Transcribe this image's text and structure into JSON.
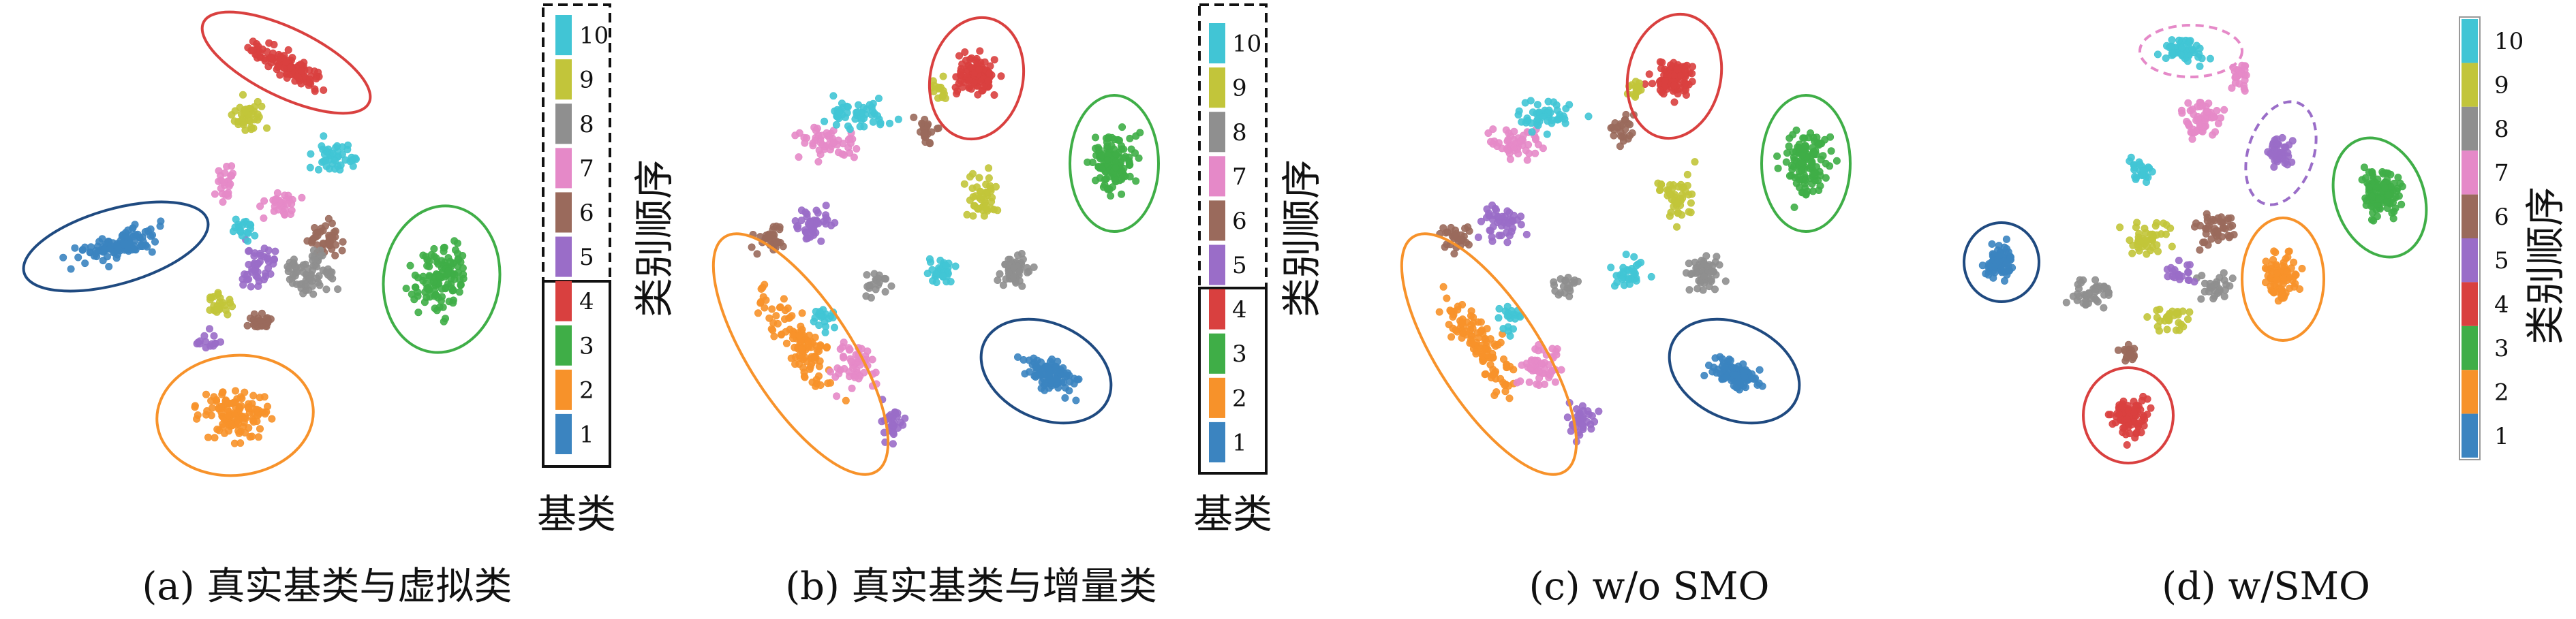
{
  "colors": {
    "1": "#3b84c0",
    "2": "#f7922a",
    "3": "#3fae47",
    "4": "#d9403f",
    "5": "#9a6dc8",
    "6": "#9a6a5c",
    "7": "#e589c8",
    "8": "#8f8f8f",
    "9": "#c2c53a",
    "10": "#41c5d5"
  },
  "chart_data": [
    {
      "type": "scatter",
      "caption": "(a) 真实基类与虚拟类",
      "legend": {
        "title": "类别顺序",
        "group_label": "基类",
        "entries": [
          "10",
          "9",
          "8",
          "7",
          "6",
          "5",
          "4",
          "3",
          "2",
          "1"
        ],
        "base_classes": [
          "1",
          "2",
          "3",
          "4"
        ],
        "other_classes": [
          "5",
          "6",
          "7",
          "8",
          "9",
          "10"
        ]
      }
    },
    {
      "type": "scatter",
      "caption": "(b) 真实基类与增量类",
      "legend": {
        "title": "类别顺序",
        "group_label": "基类",
        "entries": [
          "10",
          "9",
          "8",
          "7",
          "6",
          "5",
          "4",
          "3",
          "2",
          "1"
        ],
        "base_classes": [
          "1",
          "2",
          "3",
          "4"
        ],
        "other_classes": [
          "5",
          "6",
          "7",
          "8",
          "9",
          "10"
        ]
      }
    },
    {
      "type": "scatter",
      "caption": "(c) w/o SMO"
    },
    {
      "type": "scatter",
      "caption": "(d) w/SMO",
      "legend": {
        "title": "类别顺序",
        "entries": [
          "10",
          "9",
          "8",
          "7",
          "6",
          "5",
          "4",
          "3",
          "2",
          "1"
        ]
      }
    }
  ]
}
